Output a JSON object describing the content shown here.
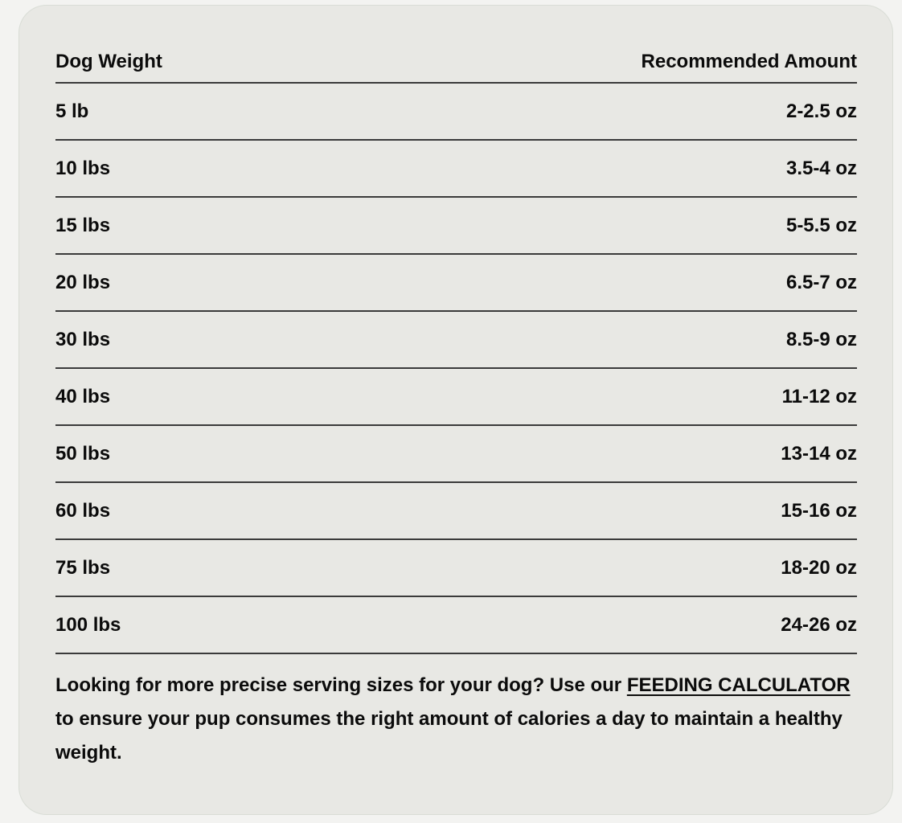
{
  "table": {
    "headers": [
      "Dog Weight",
      "Recommended Amount"
    ],
    "rows": [
      [
        "5 lb",
        "2-2.5 oz"
      ],
      [
        "10 lbs",
        "3.5-4 oz"
      ],
      [
        "15 lbs",
        "5-5.5 oz"
      ],
      [
        "20 lbs",
        "6.5-7 oz"
      ],
      [
        "30 lbs",
        "8.5-9 oz"
      ],
      [
        "40 lbs",
        "11-12 oz"
      ],
      [
        "50 lbs",
        "13-14 oz"
      ],
      [
        "60 lbs",
        "15-16 oz"
      ],
      [
        "75 lbs",
        "18-20 oz"
      ],
      [
        "100 lbs",
        "24-26 oz"
      ]
    ]
  },
  "note": {
    "before": "Looking for more precise serving sizes for your dog? Use our ",
    "link": "FEEDING CALCULATOR",
    "after": " to ensure your pup consumes the right amount of calories a day to maintain a healthy weight."
  }
}
